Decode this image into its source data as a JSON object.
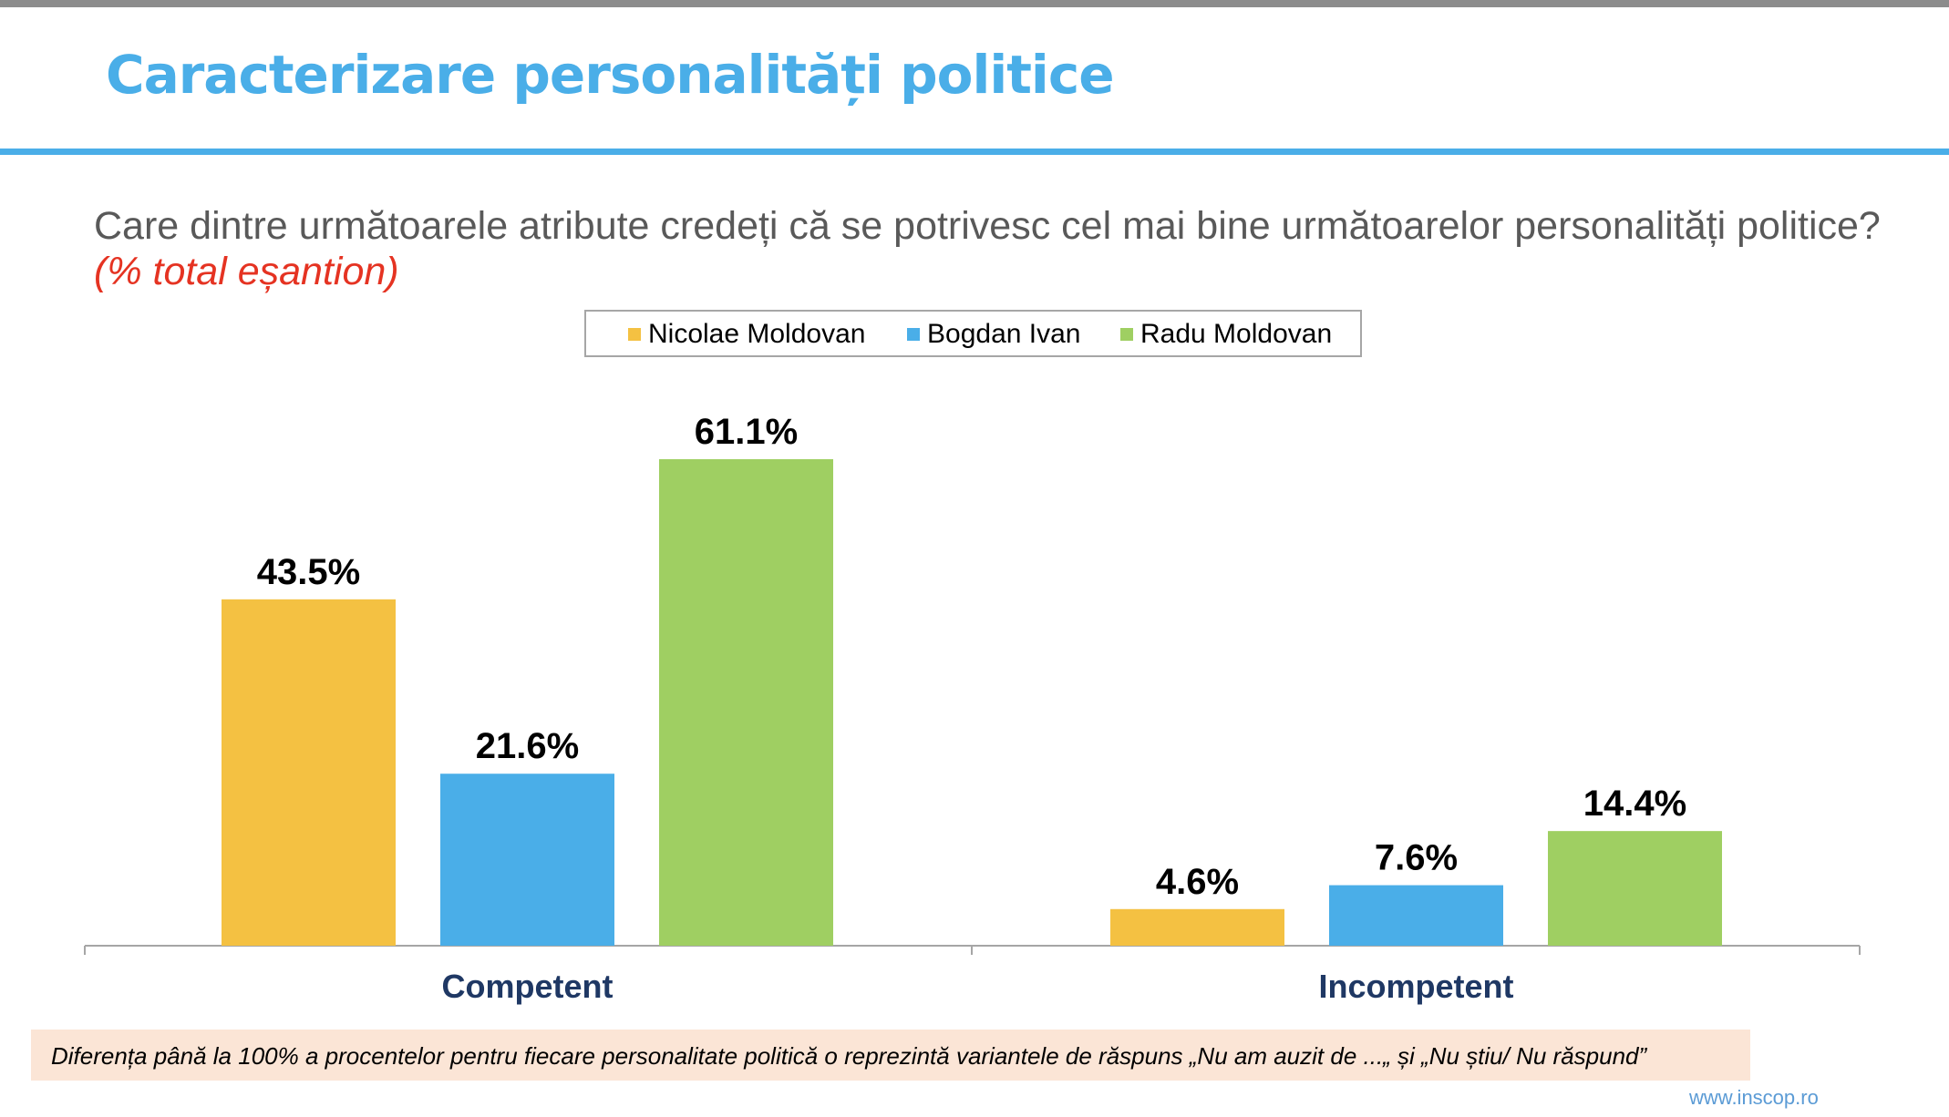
{
  "header": {
    "title": "Caracterizare personalități politice"
  },
  "question": {
    "text": "Care dintre următoarele atribute credeți că se potrivesc cel mai bine următoarelor personalități politice?",
    "note": "(% total eșantion)"
  },
  "chart_data": {
    "type": "bar",
    "categories": [
      "Competent",
      "Incompetent"
    ],
    "series": [
      {
        "name": "Nicolae Moldovan",
        "color": "#f4c142",
        "values": [
          43.5,
          4.6
        ],
        "labels": [
          "43.5%",
          "4.6%"
        ]
      },
      {
        "name": "Bogdan Ivan",
        "color": "#4aaee8",
        "values": [
          21.6,
          7.6
        ],
        "labels": [
          "21.6%",
          "7.6%"
        ]
      },
      {
        "name": "Radu Moldovan",
        "color": "#9fcf62",
        "values": [
          61.1,
          14.4
        ],
        "labels": [
          "61.1%",
          "14.4%"
        ]
      }
    ],
    "ylim": [
      0,
      61.1
    ],
    "legend": "top-center",
    "grid": false,
    "category_label_color": "#1f3864"
  },
  "footnote": "Diferența până la 100% a procentelor pentru fiecare personalitate politică o reprezintă variantele de răspuns „Nu am auzit de ...„ și „Nu știu/ Nu răspund”",
  "site": "www.inscop.ro"
}
